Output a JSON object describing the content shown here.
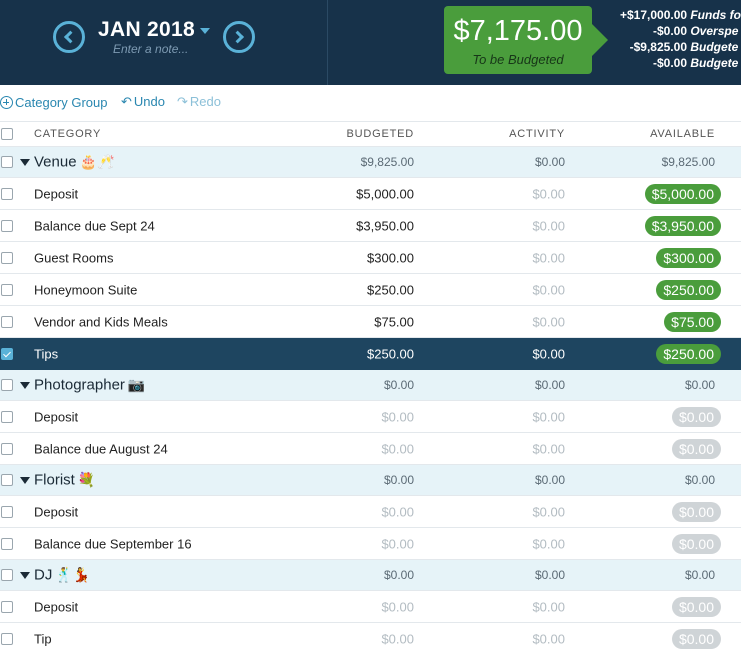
{
  "header": {
    "month": "JAN 2018",
    "note_placeholder": "Enter a note...",
    "to_be_budgeted": {
      "amount": "$7,175.00",
      "label": "To be Budgeted"
    },
    "summary": [
      {
        "amount": "+$17,000.00",
        "label": "Funds fo"
      },
      {
        "amount": "-$0.00",
        "label": "Overspe"
      },
      {
        "amount": "-$9,825.00",
        "label": "Budgete"
      },
      {
        "amount": "-$0.00",
        "label": "Budgete"
      }
    ]
  },
  "toolbar": {
    "add_group_label": "Category Group",
    "undo_label": "Undo",
    "redo_label": "Redo"
  },
  "columns": {
    "category": "CATEGORY",
    "budgeted": "BUDGETED",
    "activity": "ACTIVITY",
    "available": "AVAILABLE"
  },
  "rows": [
    {
      "type": "group",
      "name": "Venue",
      "emoji": "🎂🥂",
      "budgeted": "$9,825.00",
      "activity": "$0.00",
      "available": "$9,825.00"
    },
    {
      "type": "item",
      "name": "Deposit",
      "budgeted": "$5,000.00",
      "activity": "$0.00",
      "available": "$5,000.00",
      "status": "positive"
    },
    {
      "type": "item",
      "name": "Balance due Sept 24",
      "budgeted": "$3,950.00",
      "activity": "$0.00",
      "available": "$3,950.00",
      "status": "positive"
    },
    {
      "type": "item",
      "name": "Guest Rooms",
      "budgeted": "$300.00",
      "activity": "$0.00",
      "available": "$300.00",
      "status": "positive"
    },
    {
      "type": "item",
      "name": "Honeymoon Suite",
      "budgeted": "$250.00",
      "activity": "$0.00",
      "available": "$250.00",
      "status": "positive"
    },
    {
      "type": "item",
      "name": "Vendor and Kids Meals",
      "budgeted": "$75.00",
      "activity": "$0.00",
      "available": "$75.00",
      "status": "positive"
    },
    {
      "type": "item",
      "name": "Tips",
      "budgeted": "$250.00",
      "activity": "$0.00",
      "available": "$250.00",
      "status": "positive",
      "selected": true
    },
    {
      "type": "group",
      "name": "Photographer",
      "emoji": "📷",
      "budgeted": "$0.00",
      "activity": "$0.00",
      "available": "$0.00"
    },
    {
      "type": "item",
      "name": "Deposit",
      "budgeted": "$0.00",
      "activity": "$0.00",
      "available": "$0.00",
      "status": "zero"
    },
    {
      "type": "item",
      "name": "Balance due August 24",
      "budgeted": "$0.00",
      "activity": "$0.00",
      "available": "$0.00",
      "status": "zero"
    },
    {
      "type": "group",
      "name": "Florist",
      "emoji": "💐",
      "budgeted": "$0.00",
      "activity": "$0.00",
      "available": "$0.00"
    },
    {
      "type": "item",
      "name": "Deposit",
      "budgeted": "$0.00",
      "activity": "$0.00",
      "available": "$0.00",
      "status": "zero"
    },
    {
      "type": "item",
      "name": "Balance due September 16",
      "budgeted": "$0.00",
      "activity": "$0.00",
      "available": "$0.00",
      "status": "zero"
    },
    {
      "type": "group",
      "name": "DJ",
      "emoji": "🕺💃",
      "budgeted": "$0.00",
      "activity": "$0.00",
      "available": "$0.00"
    },
    {
      "type": "item",
      "name": "Deposit",
      "budgeted": "$0.00",
      "activity": "$0.00",
      "available": "$0.00",
      "status": "zero"
    },
    {
      "type": "item",
      "name": "Tip",
      "budgeted": "$0.00",
      "activity": "$0.00",
      "available": "$0.00",
      "status": "zero"
    }
  ],
  "colors": {
    "header_bg": "#17324a",
    "accent_blue": "#5ab2d8",
    "positive_green": "#4a9d3c",
    "zero_grey": "#cfd4d7",
    "group_row_bg": "#e6f3f8",
    "selected_row_bg": "#1e4560"
  }
}
